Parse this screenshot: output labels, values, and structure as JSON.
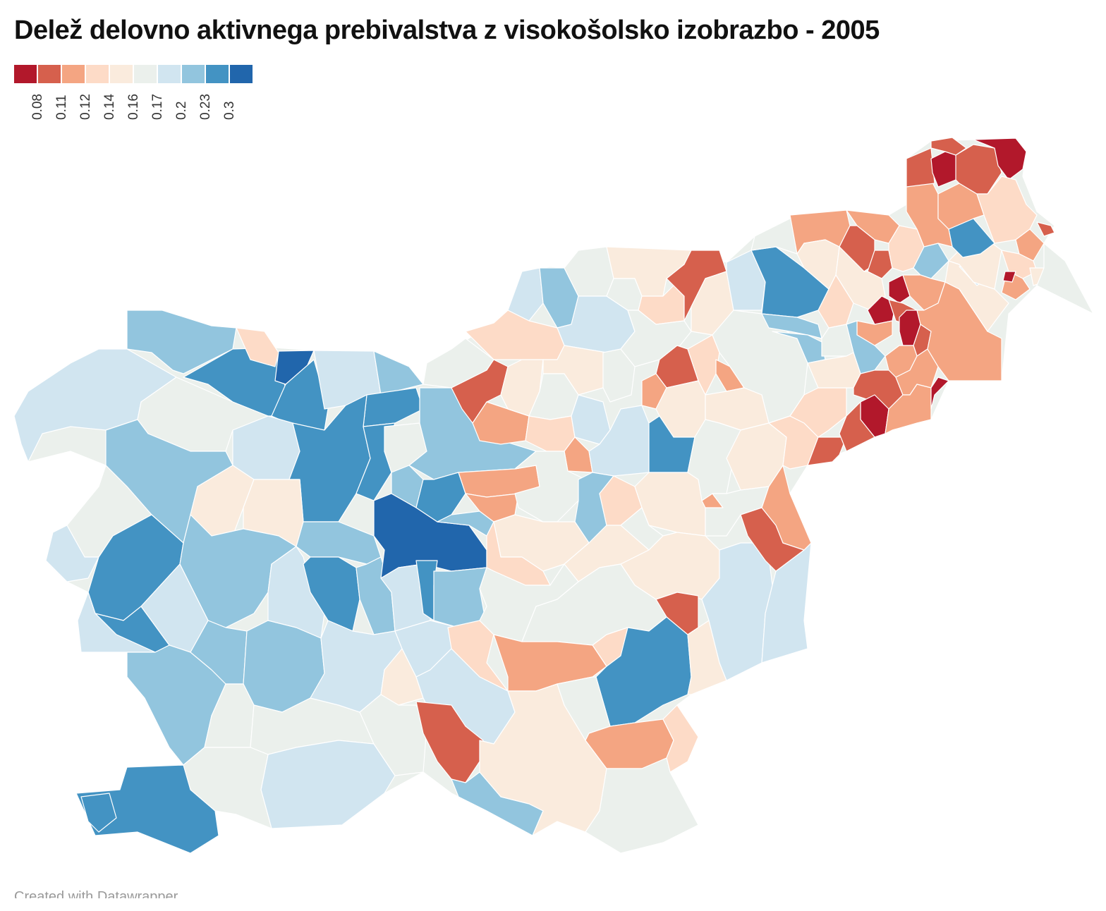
{
  "title": "Delež delovno aktivnega prebivalstva z visokošolsko izobrazbo - 2005",
  "legend": {
    "colors": [
      "#b2182b",
      "#d6604d",
      "#f4a582",
      "#fddbc7",
      "#faebdd",
      "#ebf0ec",
      "#d1e5f0",
      "#92c5de",
      "#4393c3",
      "#2166ac"
    ],
    "labels": [
      "0.08",
      "0.11",
      "0.12",
      "0.14",
      "0.16",
      "0.17",
      "0.2",
      "0.23",
      "0.3"
    ]
  },
  "credit": "Created with Datawrapper"
}
